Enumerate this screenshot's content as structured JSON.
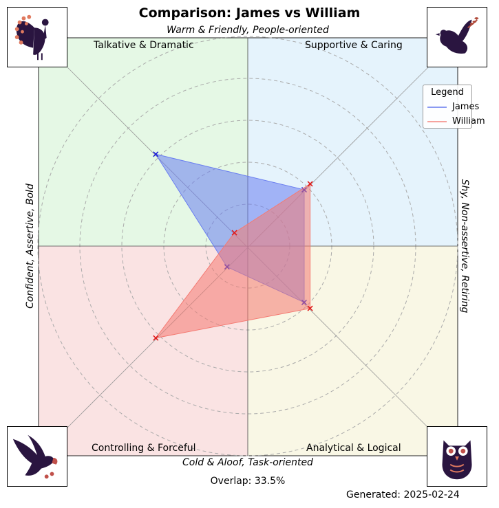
{
  "chart_data": {
    "type": "radar",
    "title": "Comparison: James vs William",
    "axis_labels": {
      "top": "Warm & Friendly, People-oriented",
      "bottom": "Cold & Aloof, Task-oriented",
      "left": "Confident, Assertive, Bold",
      "right": "Shy, Non-assertive, Retiring"
    },
    "quadrants": [
      {
        "name": "Talkative & Dramatic",
        "color": "#e5f8e5"
      },
      {
        "name": "Supportive & Caring",
        "color": "#e5f3fc"
      },
      {
        "name": "Controlling & Forceful",
        "color": "#fae3e3"
      },
      {
        "name": "Analytical & Logical",
        "color": "#f9f7e5"
      }
    ],
    "directions": [
      "Talkative & Dramatic",
      "Supportive & Caring",
      "Analytical & Logical",
      "Controlling & Forceful"
    ],
    "grid": true,
    "rings": 5,
    "rmax": 5,
    "series": [
      {
        "name": "James",
        "color": "#6a7ef0",
        "values": [
          3.1,
          1.9,
          1.9,
          0.7
        ]
      },
      {
        "name": "William",
        "color": "#f47a72",
        "values": [
          0.45,
          2.1,
          2.1,
          3.1
        ]
      }
    ],
    "legend": {
      "title": "Legend",
      "position": "top-right"
    },
    "overlap_text": "Overlap: 33.5%",
    "generated_text": "Generated: 2025-02-24"
  },
  "icons": [
    "peacock-icon",
    "dove-icon",
    "eagle-icon",
    "owl-icon"
  ]
}
